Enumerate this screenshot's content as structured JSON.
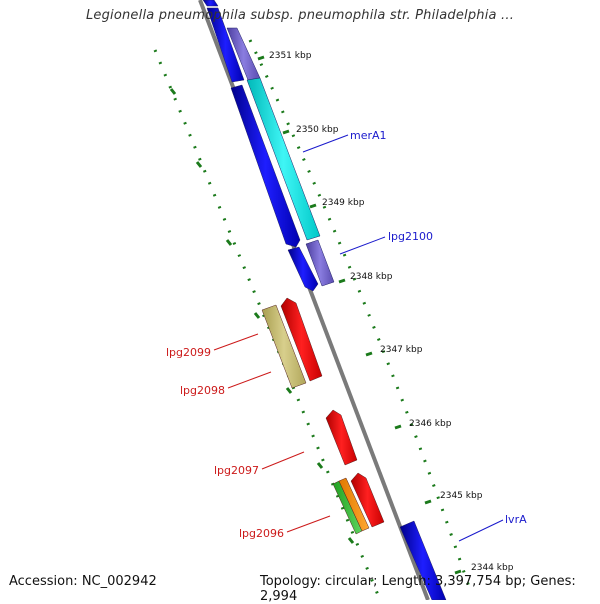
{
  "title": "Legionella pneumophila subsp. pneumophila str. Philadelphia ...",
  "footer": {
    "accession": "Accession: NC_002942",
    "topology": "Topology: circular; Length: 3,397,754 bp; Genes: 2,994"
  },
  "colors": {
    "backbone": "#777777",
    "tick": "#1b7a1b",
    "forward_label": "#1a1acc",
    "reverse_label": "#cc1a1a"
  },
  "ticks": [
    {
      "label": "2351 kbp"
    },
    {
      "label": "2350 kbp"
    },
    {
      "label": "2349 kbp"
    },
    {
      "label": "2348 kbp"
    },
    {
      "label": "2347 kbp"
    },
    {
      "label": "2346 kbp"
    },
    {
      "label": "2345 kbp"
    },
    {
      "label": "2344 kbp"
    }
  ],
  "gene_labels": [
    {
      "text": "merA1",
      "strand": "forward"
    },
    {
      "text": "lpg2100",
      "strand": "forward"
    },
    {
      "text": "lvrA",
      "strand": "forward"
    },
    {
      "text": "lpg2099",
      "strand": "reverse"
    },
    {
      "text": "lpg2098",
      "strand": "reverse"
    },
    {
      "text": "lpg2097",
      "strand": "reverse"
    },
    {
      "text": "lpg2096",
      "strand": "reverse"
    }
  ]
}
